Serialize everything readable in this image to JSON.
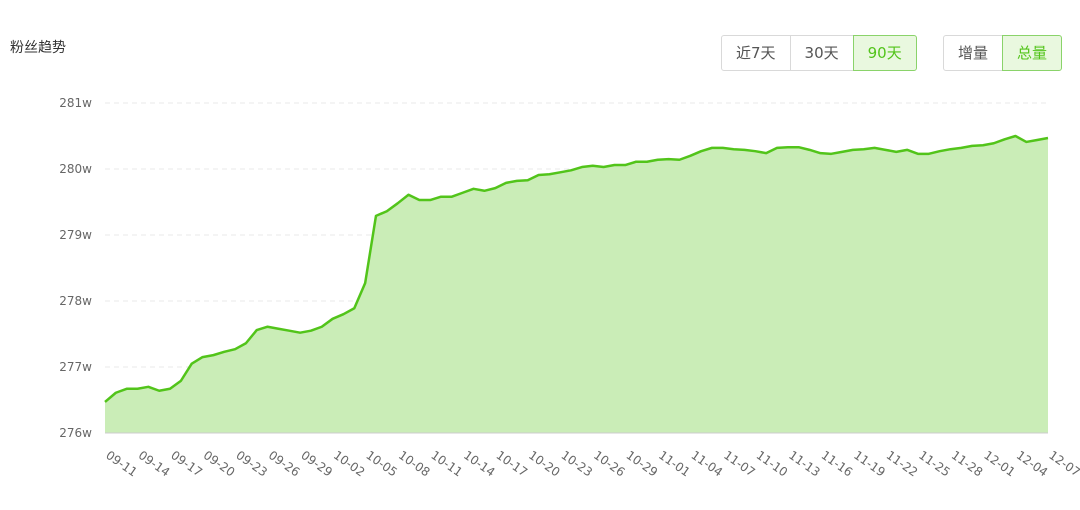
{
  "chart_data": {
    "type": "area",
    "title": "粉丝趋势",
    "categories": [
      "09-11",
      null,
      null,
      "09-14",
      null,
      null,
      "09-17",
      null,
      null,
      "09-20",
      null,
      null,
      "09-23",
      null,
      null,
      "09-26",
      null,
      null,
      "09-29",
      null,
      null,
      "10-02",
      null,
      null,
      "10-05",
      null,
      null,
      "10-08",
      null,
      null,
      "10-11",
      null,
      null,
      "10-14",
      null,
      null,
      "10-17",
      null,
      null,
      "10-20",
      null,
      null,
      "10-23",
      null,
      null,
      "10-26",
      null,
      null,
      "10-29",
      null,
      null,
      "11-01",
      null,
      null,
      "11-04",
      null,
      null,
      "11-07",
      null,
      null,
      "11-10",
      null,
      null,
      "11-13",
      null,
      null,
      "11-16",
      null,
      null,
      "11-19",
      null,
      null,
      "11-22",
      null,
      null,
      "11-25",
      null,
      null,
      "11-28",
      null,
      null,
      "12-01",
      null,
      null,
      "12-04",
      null,
      null,
      "12-07"
    ],
    "values": [
      276.47,
      276.61,
      276.67,
      276.67,
      276.7,
      276.64,
      276.67,
      276.79,
      277.05,
      277.15,
      277.18,
      277.23,
      277.27,
      277.36,
      277.56,
      277.61,
      277.58,
      277.55,
      277.52,
      277.55,
      277.61,
      277.73,
      277.8,
      277.89,
      278.27,
      279.29,
      279.36,
      279.48,
      279.61,
      279.53,
      279.53,
      279.58,
      279.58,
      279.64,
      279.7,
      279.67,
      279.71,
      279.79,
      279.82,
      279.83,
      279.91,
      279.92,
      279.95,
      279.98,
      280.03,
      280.05,
      280.03,
      280.06,
      280.06,
      280.11,
      280.11,
      280.14,
      280.15,
      280.14,
      280.2,
      280.27,
      280.32,
      280.32,
      280.3,
      280.29,
      280.27,
      280.24,
      280.32,
      280.33,
      280.33,
      280.29,
      280.24,
      280.23,
      280.26,
      280.29,
      280.3,
      280.32,
      280.29,
      280.26,
      280.29,
      280.23,
      280.23,
      280.27,
      280.3,
      280.32,
      280.35,
      280.36,
      280.39,
      280.45,
      280.5,
      280.41,
      280.44,
      280.47
    ],
    "color": "#52c41a",
    "fill_color": "#caedb7",
    "ylim": [
      276,
      281
    ],
    "yticks": [
      {
        "value": 276,
        "label": "276w"
      },
      {
        "value": 277,
        "label": "277w"
      },
      {
        "value": 278,
        "label": "278w"
      },
      {
        "value": 279,
        "label": "279w"
      },
      {
        "value": 280,
        "label": "280w"
      },
      {
        "value": 281,
        "label": "281w"
      }
    ],
    "grid": true
  },
  "controls": {
    "range": [
      {
        "label": "近7天",
        "active": false
      },
      {
        "label": "30天",
        "active": false
      },
      {
        "label": "90天",
        "active": true
      }
    ],
    "mode": [
      {
        "label": "增量",
        "active": false
      },
      {
        "label": "总量",
        "active": true
      }
    ]
  }
}
